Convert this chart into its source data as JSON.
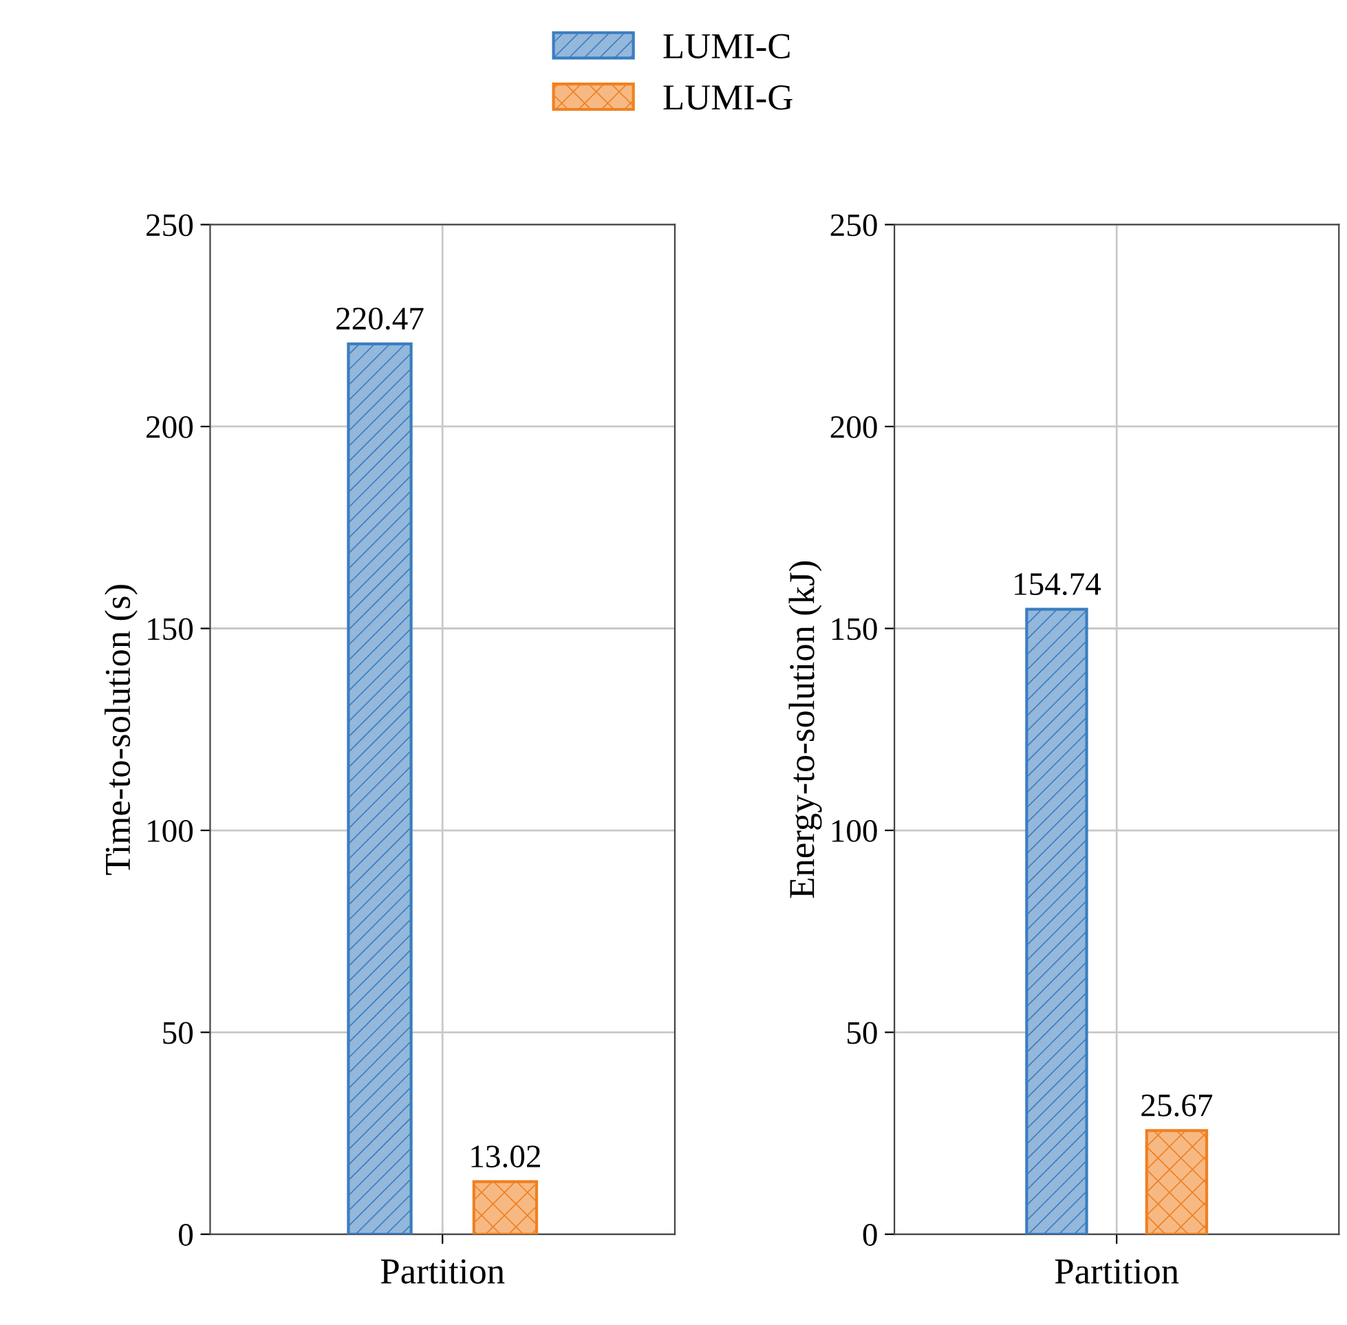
{
  "chart_data": [
    {
      "type": "bar",
      "categories": [
        null
      ],
      "xlabel": "Partition",
      "ylabel": "Time-to-solution (s)",
      "ylim": [
        0,
        250
      ],
      "yticks": [
        0,
        50,
        100,
        150,
        200,
        250
      ],
      "grid": true,
      "legend": "top",
      "data_labels": true,
      "series": [
        {
          "name": "LUMI-C",
          "color": "#3b7dbf",
          "values": [
            220.47
          ]
        },
        {
          "name": "LUMI-G",
          "color": "#f08020",
          "values": [
            13.02
          ]
        }
      ]
    },
    {
      "type": "bar",
      "categories": [
        null
      ],
      "xlabel": "Partition",
      "ylabel": "Energy-to-solution (kJ)",
      "ylim": [
        0,
        250
      ],
      "yticks": [
        0,
        50,
        100,
        150,
        200,
        250
      ],
      "grid": true,
      "data_labels": true,
      "series": [
        {
          "color": "#3b7dbf",
          "values": [
            154.74
          ]
        },
        {
          "color": "#f08020",
          "values": [
            25.67
          ]
        }
      ]
    }
  ]
}
